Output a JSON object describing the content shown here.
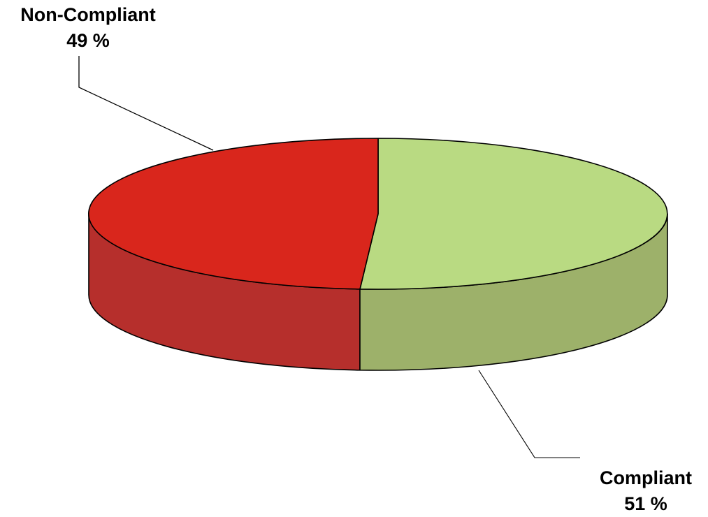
{
  "chart_data": {
    "type": "pie",
    "style": "3d",
    "title": "",
    "legend": "none",
    "slices": [
      {
        "label": "Compliant",
        "value": 51,
        "value_text": "51 %",
        "top_color": "#b9da82",
        "side_color": "#9db16a"
      },
      {
        "label": "Non-Compliant",
        "value": 49,
        "value_text": "49 %",
        "top_color": "#d9261c",
        "side_color": "#b62f2c"
      }
    ]
  }
}
